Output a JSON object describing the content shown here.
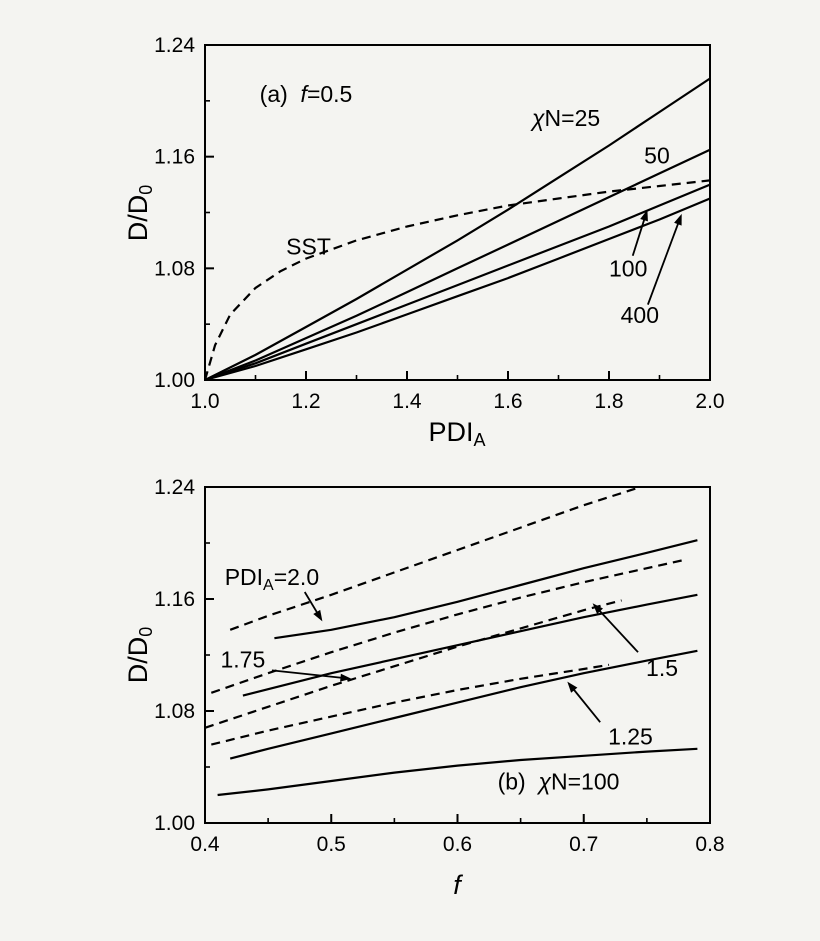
{
  "figure": {
    "background": "#f4f4f1",
    "ink_color": "#000000",
    "description_visible_panels": [
      "(a)",
      "(b)"
    ]
  },
  "chart_data": [
    {
      "id": "panel-a",
      "type": "line",
      "panel_label": "(a)",
      "condition_label": "f=0.5",
      "xlabel_segs": [
        {
          "t": "PDI"
        },
        {
          "t": "A",
          "f": "sub"
        }
      ],
      "ylabel_segs": [
        {
          "t": "D/D"
        },
        {
          "t": "0",
          "f": "sub"
        }
      ],
      "xlim": [
        1.0,
        2.0
      ],
      "ylim": [
        1.0,
        1.24
      ],
      "grid": false,
      "xticks": {
        "values": [
          1.0,
          1.2,
          1.4,
          1.6,
          1.8,
          2.0
        ],
        "labels": [
          "1.0",
          "1.2",
          "1.4",
          "1.6",
          "1.8",
          "2.0"
        ],
        "minor": [
          1.1,
          1.3,
          1.5,
          1.7,
          1.9
        ]
      },
      "yticks": {
        "values": [
          1.0,
          1.08,
          1.16,
          1.24
        ],
        "labels": [
          "1.00",
          "1.08",
          "1.16",
          "1.24"
        ],
        "minor": [
          1.04,
          1.12,
          1.2
        ]
      },
      "series": [
        {
          "name": "χN=25",
          "slug": "chiN-25",
          "style": "solid",
          "x": [
            1.0,
            1.1,
            1.2,
            1.3,
            1.4,
            1.5,
            1.6,
            1.7,
            1.8,
            1.9,
            2.0
          ],
          "y": [
            1.0,
            1.018,
            1.038,
            1.058,
            1.079,
            1.1,
            1.122,
            1.145,
            1.168,
            1.192,
            1.216
          ]
        },
        {
          "name": "50",
          "slug": "chiN-50",
          "style": "solid",
          "x": [
            1.0,
            1.1,
            1.2,
            1.3,
            1.4,
            1.5,
            1.6,
            1.7,
            1.8,
            1.9,
            2.0
          ],
          "y": [
            1.0,
            1.014,
            1.03,
            1.046,
            1.063,
            1.08,
            1.097,
            1.114,
            1.131,
            1.148,
            1.165
          ]
        },
        {
          "name": "100",
          "slug": "chiN-100",
          "style": "solid",
          "x": [
            1.0,
            1.1,
            1.2,
            1.3,
            1.4,
            1.5,
            1.6,
            1.7,
            1.8,
            1.9,
            2.0
          ],
          "y": [
            1.0,
            1.012,
            1.026,
            1.04,
            1.054,
            1.068,
            1.082,
            1.096,
            1.11,
            1.125,
            1.14
          ]
        },
        {
          "name": "400",
          "slug": "chiN-400",
          "style": "solid",
          "x": [
            1.0,
            1.1,
            1.2,
            1.3,
            1.4,
            1.5,
            1.6,
            1.7,
            1.8,
            1.9,
            2.0
          ],
          "y": [
            1.0,
            1.01,
            1.022,
            1.034,
            1.047,
            1.06,
            1.073,
            1.087,
            1.101,
            1.115,
            1.13
          ]
        },
        {
          "name": "SST",
          "slug": "SST",
          "style": "dashed",
          "x": [
            1.0,
            1.02,
            1.05,
            1.1,
            1.15,
            1.2,
            1.3,
            1.4,
            1.5,
            1.6,
            1.7,
            1.8,
            1.9,
            2.0
          ],
          "y": [
            1.0,
            1.025,
            1.047,
            1.066,
            1.078,
            1.087,
            1.1,
            1.11,
            1.118,
            1.125,
            1.13,
            1.135,
            1.139,
            1.143
          ]
        }
      ],
      "annotations": [
        {
          "x": 1.2,
          "y": 1.199,
          "segs": [
            {
              "t": "(a)  "
            },
            {
              "t": "f",
              "f": "it"
            },
            {
              "t": "=0.5"
            }
          ]
        },
        {
          "x": 1.715,
          "y": 1.182,
          "segs": [
            {
              "t": "χ",
              "f": "it"
            },
            {
              "t": "N=25"
            }
          ]
        },
        {
          "x": 1.895,
          "y": 1.155,
          "segs": [
            {
              "t": "50"
            }
          ]
        },
        {
          "x": 1.205,
          "y": 1.09,
          "segs": [
            {
              "t": "SST"
            }
          ]
        },
        {
          "x": 1.838,
          "y": 1.074,
          "segs": [
            {
              "t": "100"
            }
          ]
        },
        {
          "x": 1.861,
          "y": 1.041,
          "segs": [
            {
              "t": "400"
            }
          ]
        }
      ],
      "arrows": [
        {
          "from": [
            1.847,
            1.089
          ],
          "to": [
            1.876,
            1.122
          ]
        },
        {
          "from": [
            1.877,
            1.054
          ],
          "to": [
            1.944,
            1.119
          ]
        }
      ]
    },
    {
      "id": "panel-b",
      "type": "line",
      "panel_label": "(b)",
      "condition_label": "χN=100",
      "xlabel_segs": [
        {
          "t": "f",
          "f": "it"
        }
      ],
      "ylabel_segs": [
        {
          "t": "D/D"
        },
        {
          "t": "0",
          "f": "sub"
        }
      ],
      "xlim": [
        0.4,
        0.8
      ],
      "ylim": [
        1.0,
        1.24
      ],
      "grid": false,
      "xticks": {
        "values": [
          0.4,
          0.5,
          0.6,
          0.7,
          0.8
        ],
        "labels": [
          "0.4",
          "0.5",
          "0.6",
          "0.7",
          "0.8"
        ],
        "minor": [
          0.45,
          0.55,
          0.65,
          0.75
        ]
      },
      "yticks": {
        "values": [
          1.0,
          1.08,
          1.16,
          1.24
        ],
        "labels": [
          "1.00",
          "1.08",
          "1.16",
          "1.24"
        ],
        "minor": [
          1.04,
          1.12,
          1.2
        ]
      },
      "series": [
        {
          "name": "PDI_A=2.0 dashed",
          "slug": "pdia-2.0-dashed",
          "style": "dashed",
          "x": [
            0.42,
            0.45,
            0.5,
            0.55,
            0.6,
            0.65,
            0.7,
            0.745
          ],
          "y": [
            1.138,
            1.148,
            1.163,
            1.179,
            1.195,
            1.211,
            1.227,
            1.24
          ]
        },
        {
          "name": "PDI_A=2.0 solid",
          "slug": "pdia-2.0-solid",
          "style": "solid",
          "x": [
            0.455,
            0.5,
            0.55,
            0.6,
            0.65,
            0.7,
            0.75,
            0.79
          ],
          "y": [
            1.132,
            1.138,
            1.147,
            1.158,
            1.17,
            1.182,
            1.193,
            1.202
          ]
        },
        {
          "name": "PDI_A=1.75 dashed",
          "slug": "pdia-1.75-dashed",
          "style": "dashed",
          "x": [
            0.405,
            0.45,
            0.5,
            0.55,
            0.6,
            0.65,
            0.7,
            0.75,
            0.78
          ],
          "y": [
            1.093,
            1.107,
            1.122,
            1.136,
            1.149,
            1.161,
            1.172,
            1.182,
            1.188
          ]
        },
        {
          "name": "PDI_A=1.75 solid",
          "slug": "pdia-1.75-solid",
          "style": "solid",
          "x": [
            0.43,
            0.5,
            0.55,
            0.6,
            0.65,
            0.7,
            0.75,
            0.79
          ],
          "y": [
            1.091,
            1.107,
            1.117,
            1.127,
            1.137,
            1.147,
            1.156,
            1.163
          ]
        },
        {
          "name": "PDI_A=1.5 dashed",
          "slug": "pdia-1.5-dashed",
          "style": "dashed",
          "x": [
            0.4,
            0.45,
            0.5,
            0.55,
            0.6,
            0.65,
            0.7,
            0.73
          ],
          "y": [
            1.068,
            1.083,
            1.098,
            1.112,
            1.126,
            1.139,
            1.152,
            1.159
          ]
        },
        {
          "name": "PDI_A=1.5 solid",
          "slug": "pdia-1.5-solid",
          "style": "solid",
          "x": [
            0.42,
            0.45,
            0.5,
            0.55,
            0.6,
            0.65,
            0.7,
            0.75,
            0.79
          ],
          "y": [
            1.046,
            1.053,
            1.064,
            1.075,
            1.086,
            1.097,
            1.107,
            1.116,
            1.123
          ]
        },
        {
          "name": "PDI_A=1.25 dashed",
          "slug": "pdia-1.25-dashed",
          "style": "dashed",
          "x": [
            0.405,
            0.45,
            0.5,
            0.55,
            0.6,
            0.65,
            0.7,
            0.72
          ],
          "y": [
            1.056,
            1.066,
            1.076,
            1.086,
            1.095,
            1.103,
            1.11,
            1.113
          ]
        },
        {
          "name": "PDI_A=1.25 solid",
          "slug": "pdia-1.25-solid",
          "style": "solid",
          "x": [
            0.41,
            0.45,
            0.5,
            0.55,
            0.6,
            0.65,
            0.7,
            0.75,
            0.79
          ],
          "y": [
            1.02,
            1.024,
            1.03,
            1.036,
            1.041,
            1.045,
            1.048,
            1.051,
            1.053
          ]
        }
      ],
      "annotations": [
        {
          "x": 0.453,
          "y": 1.17,
          "segs": [
            {
              "t": "PDI"
            },
            {
              "t": "A",
              "f": "sub"
            },
            {
              "t": "=2.0"
            }
          ]
        },
        {
          "x": 0.43,
          "y": 1.111,
          "segs": [
            {
              "t": "1.75"
            }
          ]
        },
        {
          "x": 0.762,
          "y": 1.105,
          "segs": [
            {
              "t": "1.5"
            }
          ]
        },
        {
          "x": 0.737,
          "y": 1.056,
          "segs": [
            {
              "t": "1.25"
            }
          ]
        },
        {
          "x": 0.68,
          "y": 1.024,
          "segs": [
            {
              "t": "(b)  "
            },
            {
              "t": "χ",
              "f": "it"
            },
            {
              "t": "N=100"
            }
          ]
        }
      ],
      "arrows": [
        {
          "from": [
            0.479,
            1.165
          ],
          "to": [
            0.493,
            1.144
          ]
        },
        {
          "from": [
            0.453,
            1.109
          ],
          "to": [
            0.516,
            1.103
          ]
        },
        {
          "from": [
            0.743,
            1.122
          ],
          "to": [
            0.707,
            1.157
          ]
        },
        {
          "from": [
            0.713,
            1.072
          ],
          "to": [
            0.687,
            1.101
          ]
        }
      ]
    }
  ]
}
